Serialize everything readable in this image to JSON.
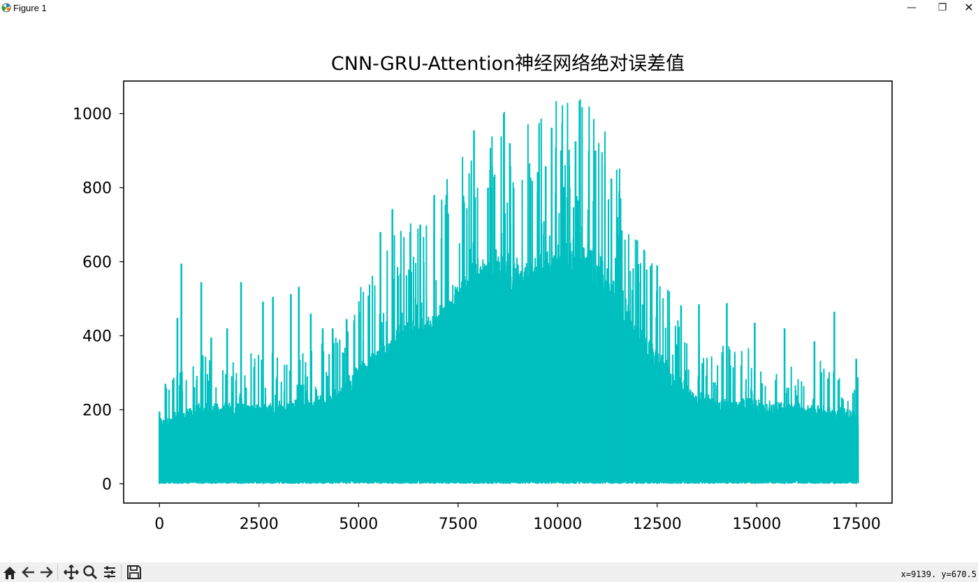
{
  "window": {
    "title": "Figure 1",
    "minimize": "—",
    "maximize": "❐",
    "close": "✕"
  },
  "toolbar": {
    "buttons": [
      {
        "name": "home-icon",
        "label": "Home"
      },
      {
        "name": "back-icon",
        "label": "Back"
      },
      {
        "name": "forward-icon",
        "label": "Forward"
      },
      {
        "name": "pan-icon",
        "label": "Pan"
      },
      {
        "name": "zoom-icon",
        "label": "Zoom"
      },
      {
        "name": "configure-subplots-icon",
        "label": "Subplots"
      },
      {
        "name": "save-icon",
        "label": "Save"
      }
    ],
    "status": "x=9139.  y=670.5"
  },
  "chart_data": {
    "type": "line",
    "title": "CNN-GRU-Attention神经网络绝对误差值",
    "xlabel": "",
    "ylabel": "",
    "xlim": [
      -900,
      18400
    ],
    "ylim": [
      -52,
      1088
    ],
    "xticks": [
      0,
      2500,
      5000,
      7500,
      10000,
      12500,
      15000,
      17500
    ],
    "xtick_labels": [
      "0",
      "2500",
      "5000",
      "7500",
      "10000",
      "12500",
      "15000",
      "17500"
    ],
    "yticks": [
      0,
      200,
      400,
      600,
      800,
      1000
    ],
    "ytick_labels": [
      "0",
      "200",
      "400",
      "600",
      "800",
      "1000"
    ],
    "grid": false,
    "color": "#00bfbf",
    "n_points": 17550,
    "dense_band_top": [
      [
        0,
        180
      ],
      [
        500,
        200
      ],
      [
        1000,
        220
      ],
      [
        2000,
        220
      ],
      [
        3000,
        225
      ],
      [
        4000,
        240
      ],
      [
        4500,
        260
      ],
      [
        5000,
        330
      ],
      [
        5500,
        380
      ],
      [
        6000,
        430
      ],
      [
        6500,
        450
      ],
      [
        7000,
        480
      ],
      [
        7500,
        560
      ],
      [
        8000,
        620
      ],
      [
        8500,
        640
      ],
      [
        9000,
        610
      ],
      [
        9500,
        620
      ],
      [
        10000,
        650
      ],
      [
        10500,
        670
      ],
      [
        11000,
        630
      ],
      [
        11500,
        560
      ],
      [
        12000,
        430
      ],
      [
        12500,
        370
      ],
      [
        13000,
        300
      ],
      [
        13500,
        250
      ],
      [
        14000,
        240
      ],
      [
        15000,
        230
      ],
      [
        16000,
        220
      ],
      [
        17000,
        210
      ],
      [
        17550,
        200
      ]
    ],
    "peaks": [
      [
        0,
        195
      ],
      [
        150,
        270
      ],
      [
        450,
        448
      ],
      [
        550,
        595
      ],
      [
        1050,
        545
      ],
      [
        1300,
        395
      ],
      [
        1700,
        420
      ],
      [
        2050,
        545
      ],
      [
        2600,
        492
      ],
      [
        2850,
        505
      ],
      [
        3300,
        512
      ],
      [
        3500,
        532
      ],
      [
        3800,
        460
      ],
      [
        4100,
        420
      ],
      [
        4350,
        420
      ],
      [
        4700,
        445
      ],
      [
        5250,
        508
      ],
      [
        5550,
        680
      ],
      [
        5850,
        742
      ],
      [
        6300,
        680
      ],
      [
        6550,
        700
      ],
      [
        6900,
        780
      ],
      [
        7250,
        730
      ],
      [
        7650,
        760
      ],
      [
        7900,
        955
      ],
      [
        8250,
        800
      ],
      [
        8350,
        800
      ],
      [
        8650,
        1000
      ],
      [
        8800,
        920
      ],
      [
        9500,
        842
      ],
      [
        9700,
        858
      ],
      [
        9850,
        962
      ],
      [
        10150,
        802
      ],
      [
        10300,
        800
      ],
      [
        10450,
        925
      ],
      [
        10550,
        1035
      ],
      [
        10950,
        900
      ],
      [
        11350,
        825
      ],
      [
        11550,
        790
      ],
      [
        12000,
        658
      ],
      [
        12500,
        590
      ],
      [
        13100,
        482
      ],
      [
        13550,
        485
      ],
      [
        14250,
        488
      ],
      [
        14950,
        435
      ],
      [
        15700,
        420
      ],
      [
        16450,
        385
      ],
      [
        16950,
        465
      ],
      [
        17500,
        338
      ]
    ]
  }
}
